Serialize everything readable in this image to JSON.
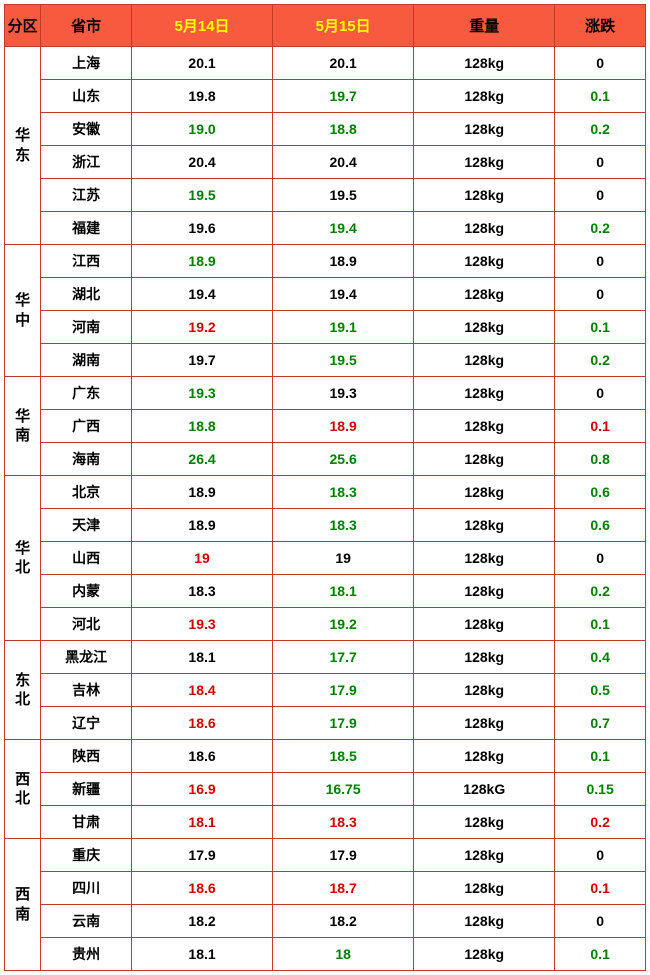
{
  "colors": {
    "header_bg": "#f85a40",
    "border": "#c03a2b",
    "black": "#000000",
    "green": "#008000",
    "red": "#d40000",
    "highlight_yellow": "#ffff00"
  },
  "header": {
    "region": "分区",
    "province": "省市",
    "date1": "5月14日",
    "date2": "5月15日",
    "weight": "重量",
    "change": "涨跌"
  },
  "regions": [
    {
      "name": "华东",
      "rows": [
        {
          "prov": "上海",
          "d1": "20.1",
          "d1c": "black",
          "d2": "20.1",
          "d2c": "black",
          "wt": "128kg",
          "chg": "0",
          "chgc": "black"
        },
        {
          "prov": "山东",
          "d1": "19.8",
          "d1c": "black",
          "d2": "19.7",
          "d2c": "green",
          "wt": "128kg",
          "chg": "0.1",
          "chgc": "green"
        },
        {
          "prov": "安徽",
          "d1": "19.0",
          "d1c": "green",
          "d2": "18.8",
          "d2c": "green",
          "wt": "128kg",
          "chg": "0.2",
          "chgc": "green"
        },
        {
          "prov": "浙江",
          "d1": "20.4",
          "d1c": "black",
          "d2": "20.4",
          "d2c": "black",
          "wt": "128kg",
          "chg": "0",
          "chgc": "black"
        },
        {
          "prov": "江苏",
          "d1": "19.5",
          "d1c": "green",
          "d2": "19.5",
          "d2c": "black",
          "wt": "128kg",
          "chg": "0",
          "chgc": "black"
        },
        {
          "prov": "福建",
          "d1": "19.6",
          "d1c": "black",
          "d2": "19.4",
          "d2c": "green",
          "wt": "128kg",
          "chg": "0.2",
          "chgc": "green"
        }
      ]
    },
    {
      "name": "华中",
      "rows": [
        {
          "prov": "江西",
          "d1": "18.9",
          "d1c": "green",
          "d2": "18.9",
          "d2c": "black",
          "wt": "128kg",
          "chg": "0",
          "chgc": "black"
        },
        {
          "prov": "湖北",
          "d1": "19.4",
          "d1c": "black",
          "d2": "19.4",
          "d2c": "black",
          "wt": "128kg",
          "chg": "0",
          "chgc": "black"
        },
        {
          "prov": "河南",
          "d1": "19.2",
          "d1c": "red",
          "d2": "19.1",
          "d2c": "green",
          "wt": "128kg",
          "chg": "0.1",
          "chgc": "green"
        },
        {
          "prov": "湖南",
          "d1": "19.7",
          "d1c": "black",
          "d2": "19.5",
          "d2c": "green",
          "wt": "128kg",
          "chg": "0.2",
          "chgc": "green"
        }
      ]
    },
    {
      "name": "华南",
      "rows": [
        {
          "prov": "广东",
          "d1": "19.3",
          "d1c": "green",
          "d2": "19.3",
          "d2c": "black",
          "wt": "128kg",
          "chg": "0",
          "chgc": "black"
        },
        {
          "prov": "广西",
          "d1": "18.8",
          "d1c": "green",
          "d2": "18.9",
          "d2c": "red",
          "wt": "128kg",
          "chg": "0.1",
          "chgc": "red"
        },
        {
          "prov": "海南",
          "d1": "26.4",
          "d1c": "green",
          "d2": "25.6",
          "d2c": "green",
          "wt": "128kg",
          "chg": "0.8",
          "chgc": "green"
        }
      ]
    },
    {
      "name": "华北",
      "rows": [
        {
          "prov": "北京",
          "d1": "18.9",
          "d1c": "black",
          "d2": "18.3",
          "d2c": "green",
          "wt": "128kg",
          "chg": "0.6",
          "chgc": "green"
        },
        {
          "prov": "天津",
          "d1": "18.9",
          "d1c": "black",
          "d2": "18.3",
          "d2c": "green",
          "wt": "128kg",
          "chg": "0.6",
          "chgc": "green"
        },
        {
          "prov": "山西",
          "d1": "19",
          "d1c": "red",
          "d2": "19",
          "d2c": "black",
          "wt": "128kg",
          "chg": "0",
          "chgc": "black"
        },
        {
          "prov": "内蒙",
          "d1": "18.3",
          "d1c": "black",
          "d2": "18.1",
          "d2c": "green",
          "wt": "128kg",
          "chg": "0.2",
          "chgc": "green"
        },
        {
          "prov": "河北",
          "d1": "19.3",
          "d1c": "red",
          "d2": "19.2",
          "d2c": "green",
          "wt": "128kg",
          "chg": "0.1",
          "chgc": "green"
        }
      ]
    },
    {
      "name": "东北",
      "rows": [
        {
          "prov": "黑龙江",
          "d1": "18.1",
          "d1c": "black",
          "d2": "17.7",
          "d2c": "green",
          "wt": "128kg",
          "chg": "0.4",
          "chgc": "green"
        },
        {
          "prov": "吉林",
          "d1": "18.4",
          "d1c": "red",
          "d2": "17.9",
          "d2c": "green",
          "wt": "128kg",
          "chg": "0.5",
          "chgc": "green"
        },
        {
          "prov": "辽宁",
          "d1": "18.6",
          "d1c": "red",
          "d2": "17.9",
          "d2c": "green",
          "wt": "128kg",
          "chg": "0.7",
          "chgc": "green"
        }
      ]
    },
    {
      "name": "西北",
      "rows": [
        {
          "prov": "陕西",
          "d1": "18.6",
          "d1c": "black",
          "d2": "18.5",
          "d2c": "green",
          "wt": "128kg",
          "chg": "0.1",
          "chgc": "green"
        },
        {
          "prov": "新疆",
          "d1": "16.9",
          "d1c": "red",
          "d2": "16.75",
          "d2c": "green",
          "wt": "128kG",
          "chg": "0.15",
          "chgc": "green"
        },
        {
          "prov": "甘肃",
          "d1": "18.1",
          "d1c": "red",
          "d2": "18.3",
          "d2c": "red",
          "wt": "128kg",
          "chg": "0.2",
          "chgc": "red"
        }
      ]
    },
    {
      "name": "西南",
      "rows": [
        {
          "prov": "重庆",
          "d1": "17.9",
          "d1c": "black",
          "d2": "17.9",
          "d2c": "black",
          "wt": "128kg",
          "chg": "0",
          "chgc": "black"
        },
        {
          "prov": "四川",
          "d1": "18.6",
          "d1c": "red",
          "d2": "18.7",
          "d2c": "red",
          "wt": "128kg",
          "chg": "0.1",
          "chgc": "red"
        },
        {
          "prov": "云南",
          "d1": "18.2",
          "d1c": "black",
          "d2": "18.2",
          "d2c": "black",
          "wt": "128kg",
          "chg": "0",
          "chgc": "black"
        },
        {
          "prov": "贵州",
          "d1": "18.1",
          "d1c": "black",
          "d2": "18",
          "d2c": "green",
          "wt": "128kg",
          "chg": "0.1",
          "chgc": "green"
        }
      ]
    }
  ]
}
